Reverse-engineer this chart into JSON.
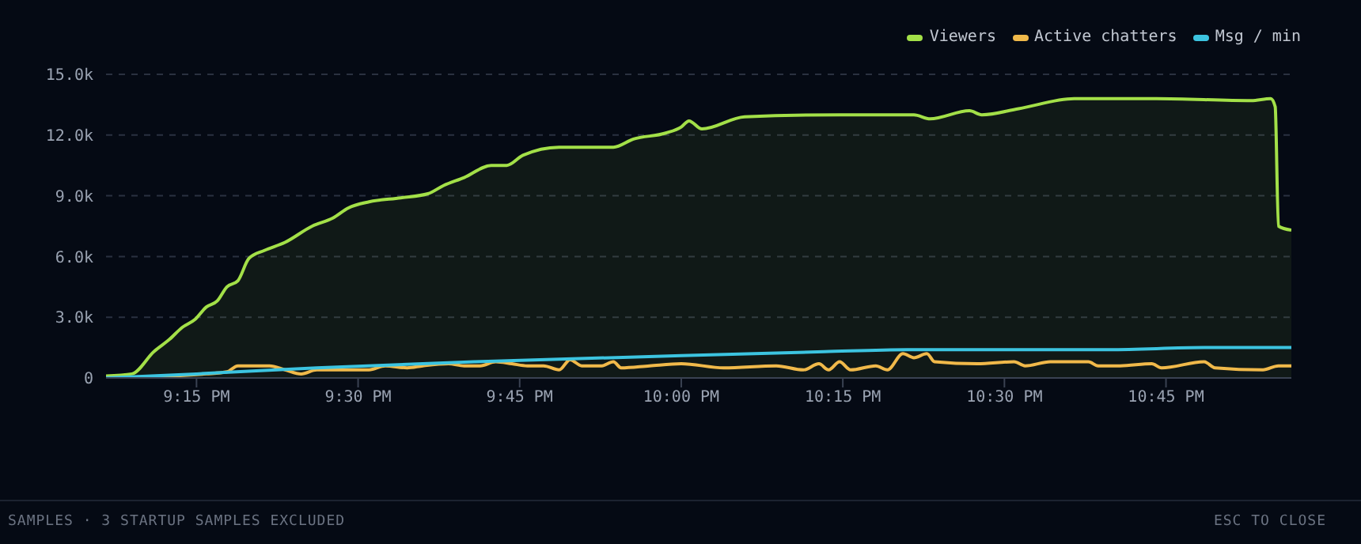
{
  "chart_data": {
    "type": "line",
    "xlim": [
      21.11,
      22.944
    ],
    "xticks": [
      {
        "value": 21.25,
        "label": "9:15 PM"
      },
      {
        "value": 21.5,
        "label": "9:30 PM"
      },
      {
        "value": 21.75,
        "label": "9:45 PM"
      },
      {
        "value": 22,
        "label": "10:00 PM"
      },
      {
        "value": 22.25,
        "label": "10:15 PM"
      },
      {
        "value": 22.5,
        "label": "10:30 PM"
      },
      {
        "value": 22.75,
        "label": "10:45 PM"
      }
    ],
    "ylim": [
      0,
      15000
    ],
    "yticks": [
      0,
      {
        "value": 3000,
        "label": "3.0k"
      },
      {
        "value": 6000,
        "label": "6.0k"
      },
      {
        "value": 9000,
        "label": "9.0k"
      },
      {
        "value": 12000,
        "label": "12.0k"
      },
      {
        "value": 15000,
        "label": "15.0k"
      }
    ],
    "grid": "y",
    "legend": "top right",
    "marker": "none",
    "line_style": "solid",
    "series": [
      {
        "name": "Viewers",
        "type": "area",
        "color": "#a3e048",
        "x": [
          21.11,
          21.15,
          21.184,
          21.208,
          21.228,
          21.248,
          21.265,
          21.282,
          21.297,
          21.314,
          21.331,
          21.355,
          21.387,
          21.429,
          21.461,
          21.485,
          21.517,
          21.566,
          21.608,
          21.632,
          21.664,
          21.706,
          21.73,
          21.755,
          21.811,
          21.846,
          21.895,
          21.926,
          21.976,
          22.0,
          22.012,
          22.032,
          22.098,
          22.245,
          22.36,
          22.385,
          22.446,
          22.465,
          22.522,
          22.608,
          22.735,
          22.882,
          22.912,
          22.919,
          22.924,
          22.944
        ],
        "values": [
          100,
          200,
          1300,
          1900,
          2500,
          2900,
          3500,
          3800,
          4500,
          4800,
          5900,
          6300,
          6700,
          7500,
          7900,
          8400,
          8700,
          8900,
          9100,
          9500,
          9900,
          10500,
          10500,
          11000,
          11400,
          11400,
          11400,
          11800,
          12100,
          12400,
          12700,
          12300,
          12900,
          13000,
          13000,
          12800,
          13200,
          13000,
          13300,
          13800,
          13800,
          13700,
          13800,
          13400,
          7500,
          7300
        ]
      },
      {
        "name": "Active chatters",
        "color": "#f0b94a",
        "x": [
          21.11,
          21.265,
          21.297,
          21.314,
          21.355,
          21.363,
          21.387,
          21.412,
          21.436,
          21.485,
          21.517,
          21.542,
          21.576,
          21.6,
          21.64,
          21.664,
          21.689,
          21.713,
          21.738,
          21.762,
          21.787,
          21.811,
          21.828,
          21.846,
          21.877,
          21.895,
          21.907,
          21.951,
          22.0,
          22.066,
          22.147,
          22.189,
          22.213,
          22.228,
          22.245,
          22.262,
          22.301,
          22.319,
          22.343,
          22.36,
          22.38,
          22.392,
          22.458,
          22.515,
          22.532,
          22.571,
          22.63,
          22.645,
          22.679,
          22.728,
          22.743,
          22.809,
          22.826,
          22.9,
          22.924,
          22.944
        ],
        "values": [
          0,
          200,
          300,
          600,
          600,
          600,
          400,
          200,
          400,
          400,
          400,
          600,
          500,
          600,
          700,
          600,
          600,
          800,
          700,
          600,
          600,
          400,
          900,
          600,
          600,
          800,
          500,
          600,
          700,
          500,
          600,
          400,
          700,
          400,
          800,
          400,
          600,
          400,
          1200,
          1000,
          1200,
          800,
          700,
          800,
          600,
          800,
          800,
          600,
          600,
          700,
          500,
          800,
          500,
          400,
          600,
          600
        ]
      },
      {
        "name": "Msg / min",
        "color": "#3cc4e0",
        "x": [
          21.11,
          21.25,
          21.436,
          21.681,
          22.0,
          22.221,
          22.35,
          22.662,
          22.809,
          22.944
        ],
        "values": [
          0,
          200,
          500,
          800,
          1100,
          1300,
          1400,
          1400,
          1500,
          1500
        ]
      }
    ],
    "annotations": [
      "SAMPLES · 3 STARTUP SAMPLES EXCLUDED",
      "ESC TO CLOSE"
    ]
  }
}
